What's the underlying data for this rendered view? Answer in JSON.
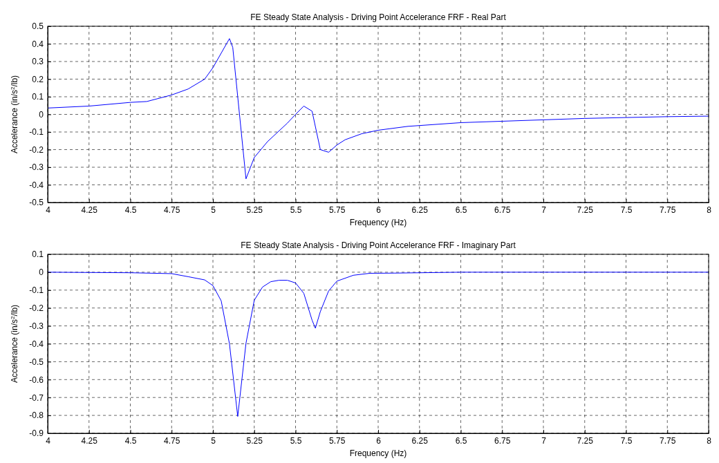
{
  "chart_data": [
    {
      "type": "line",
      "title": "FE Steady State Analysis - Driving Point Accelerance FRF - Real Part",
      "xlabel": "Frequency (Hz)",
      "ylabel": "Accelerance (in/s$^{2}$/lb)",
      "xlim": [
        4,
        8
      ],
      "ylim": [
        -0.5,
        0.5
      ],
      "xticks": [
        4,
        4.25,
        4.5,
        4.75,
        5,
        5.25,
        5.5,
        5.75,
        6,
        6.25,
        6.5,
        6.75,
        7,
        7.25,
        7.5,
        7.75,
        8
      ],
      "yticks": [
        -0.5,
        -0.4,
        -0.3,
        -0.2,
        -0.1,
        0,
        0.1,
        0.2,
        0.3,
        0.4,
        0.5
      ],
      "grid": true,
      "line_style": "solid",
      "series": [
        {
          "color": "#0000ff",
          "x": [
            4,
            4.25,
            4.5,
            4.6,
            4.75,
            4.85,
            4.95,
            5,
            5.1,
            5.12,
            5.2,
            5.25,
            5.33,
            5.45,
            5.5,
            5.55,
            5.6,
            5.65,
            5.7,
            5.75,
            5.8,
            5.9,
            6,
            6.18,
            6.5,
            7,
            7.25,
            7.5,
            7.75,
            8
          ],
          "values": [
            0.036,
            0.047,
            0.068,
            0.073,
            0.11,
            0.144,
            0.2,
            0.265,
            0.43,
            0.38,
            -0.366,
            -0.245,
            -0.155,
            -0.05,
            0,
            0.047,
            0.018,
            -0.2,
            -0.215,
            -0.174,
            -0.144,
            -0.11,
            -0.09,
            -0.068,
            -0.047,
            -0.031,
            -0.023,
            -0.018,
            -0.013,
            -0.01
          ]
        }
      ]
    },
    {
      "type": "line",
      "title": "FE Steady State Analysis - Driving Point Accelerance FRF - Imaginary Part",
      "xlabel": "Frequency (Hz)",
      "ylabel": "Accelerance (in/s$^{2}$/lb)",
      "xlim": [
        4,
        8
      ],
      "ylim": [
        -0.9,
        0.1
      ],
      "xticks": [
        4,
        4.25,
        4.5,
        4.75,
        5,
        5.25,
        5.5,
        5.75,
        6,
        6.25,
        6.5,
        6.75,
        7,
        7.25,
        7.5,
        7.75,
        8
      ],
      "yticks": [
        -0.9,
        -0.8,
        -0.7,
        -0.6,
        -0.5,
        -0.4,
        -0.3,
        -0.2,
        -0.1,
        0,
        0.1
      ],
      "grid": true,
      "line_style": "solid",
      "series": [
        {
          "color": "#0000ff",
          "x": [
            4,
            4.5,
            4.75,
            4.85,
            4.95,
            5,
            5.05,
            5.1,
            5.15,
            5.2,
            5.25,
            5.3,
            5.35,
            5.4,
            5.45,
            5.5,
            5.55,
            5.6,
            5.62,
            5.65,
            5.7,
            5.75,
            5.85,
            5.95,
            6.1,
            6.5,
            7,
            7.5,
            8
          ],
          "values": [
            0,
            -0.003,
            -0.008,
            -0.025,
            -0.043,
            -0.075,
            -0.16,
            -0.4,
            -0.806,
            -0.397,
            -0.157,
            -0.083,
            -0.053,
            -0.045,
            -0.045,
            -0.06,
            -0.118,
            -0.268,
            -0.313,
            -0.22,
            -0.105,
            -0.05,
            -0.017,
            -0.006,
            -0.005,
            0,
            0,
            0,
            0
          ]
        }
      ]
    }
  ]
}
